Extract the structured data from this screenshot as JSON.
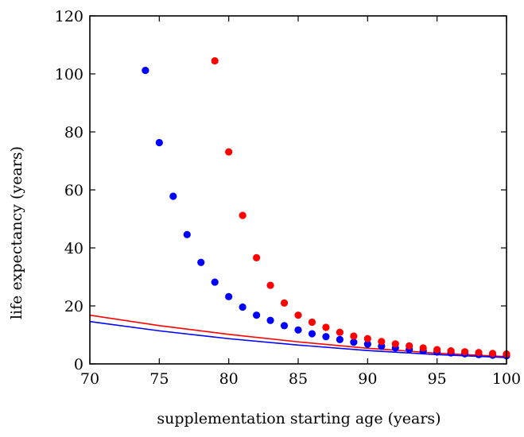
{
  "chart_data": {
    "type": "scatter",
    "title": "",
    "xlabel": "supplementation starting age (years)",
    "ylabel": "life expectancy (years)",
    "xlim": [
      70,
      100
    ],
    "ylim": [
      0,
      120
    ],
    "x_ticks": [
      70,
      75,
      80,
      85,
      90,
      95,
      100
    ],
    "y_ticks": [
      0,
      20,
      40,
      60,
      80,
      100,
      120
    ],
    "grid": false,
    "legend": "none",
    "series": [
      {
        "mark": "points",
        "color": "#0000ff",
        "points": [
          [
            74,
            101.2
          ],
          [
            75,
            76.3
          ],
          [
            76,
            57.8
          ],
          [
            77,
            44.6
          ],
          [
            78,
            35.0
          ],
          [
            79,
            28.2
          ],
          [
            80,
            23.2
          ],
          [
            81,
            19.6
          ],
          [
            82,
            16.8
          ],
          [
            83,
            15.0
          ],
          [
            84,
            13.2
          ],
          [
            85,
            11.7
          ],
          [
            86,
            10.4
          ],
          [
            87,
            9.4
          ],
          [
            88,
            8.4
          ],
          [
            89,
            7.5
          ],
          [
            90,
            6.8
          ],
          [
            91,
            6.1
          ],
          [
            92,
            5.5
          ],
          [
            93,
            5.0
          ],
          [
            94,
            4.5
          ],
          [
            95,
            4.1
          ],
          [
            96,
            3.8
          ],
          [
            97,
            3.5
          ],
          [
            98,
            3.2
          ],
          [
            99,
            3.0
          ],
          [
            100,
            2.8
          ]
        ]
      },
      {
        "mark": "points",
        "color": "#ff0000",
        "points": [
          [
            79,
            104.5
          ],
          [
            80,
            73.1
          ],
          [
            81,
            51.2
          ],
          [
            82,
            36.6
          ],
          [
            83,
            27.1
          ],
          [
            84,
            21.0
          ],
          [
            85,
            16.8
          ],
          [
            86,
            14.4
          ],
          [
            87,
            12.6
          ],
          [
            88,
            10.9
          ],
          [
            89,
            9.6
          ],
          [
            90,
            8.7
          ],
          [
            91,
            7.7
          ],
          [
            92,
            6.9
          ],
          [
            93,
            6.2
          ],
          [
            94,
            5.5
          ],
          [
            95,
            4.9
          ],
          [
            96,
            4.5
          ],
          [
            97,
            4.2
          ],
          [
            98,
            3.9
          ],
          [
            99,
            3.6
          ],
          [
            100,
            3.4
          ]
        ]
      },
      {
        "mark": "line",
        "color": "#ff0000",
        "points": [
          [
            70,
            16.8
          ],
          [
            75,
            13.2
          ],
          [
            80,
            10.2
          ],
          [
            85,
            7.6
          ],
          [
            90,
            5.4
          ],
          [
            95,
            3.7
          ],
          [
            100,
            2.5
          ]
        ]
      },
      {
        "mark": "line",
        "color": "#0000ff",
        "points": [
          [
            70,
            14.6
          ],
          [
            75,
            11.4
          ],
          [
            80,
            8.7
          ],
          [
            85,
            6.5
          ],
          [
            90,
            4.6
          ],
          [
            95,
            3.2
          ],
          [
            100,
            2.2
          ]
        ]
      }
    ]
  }
}
